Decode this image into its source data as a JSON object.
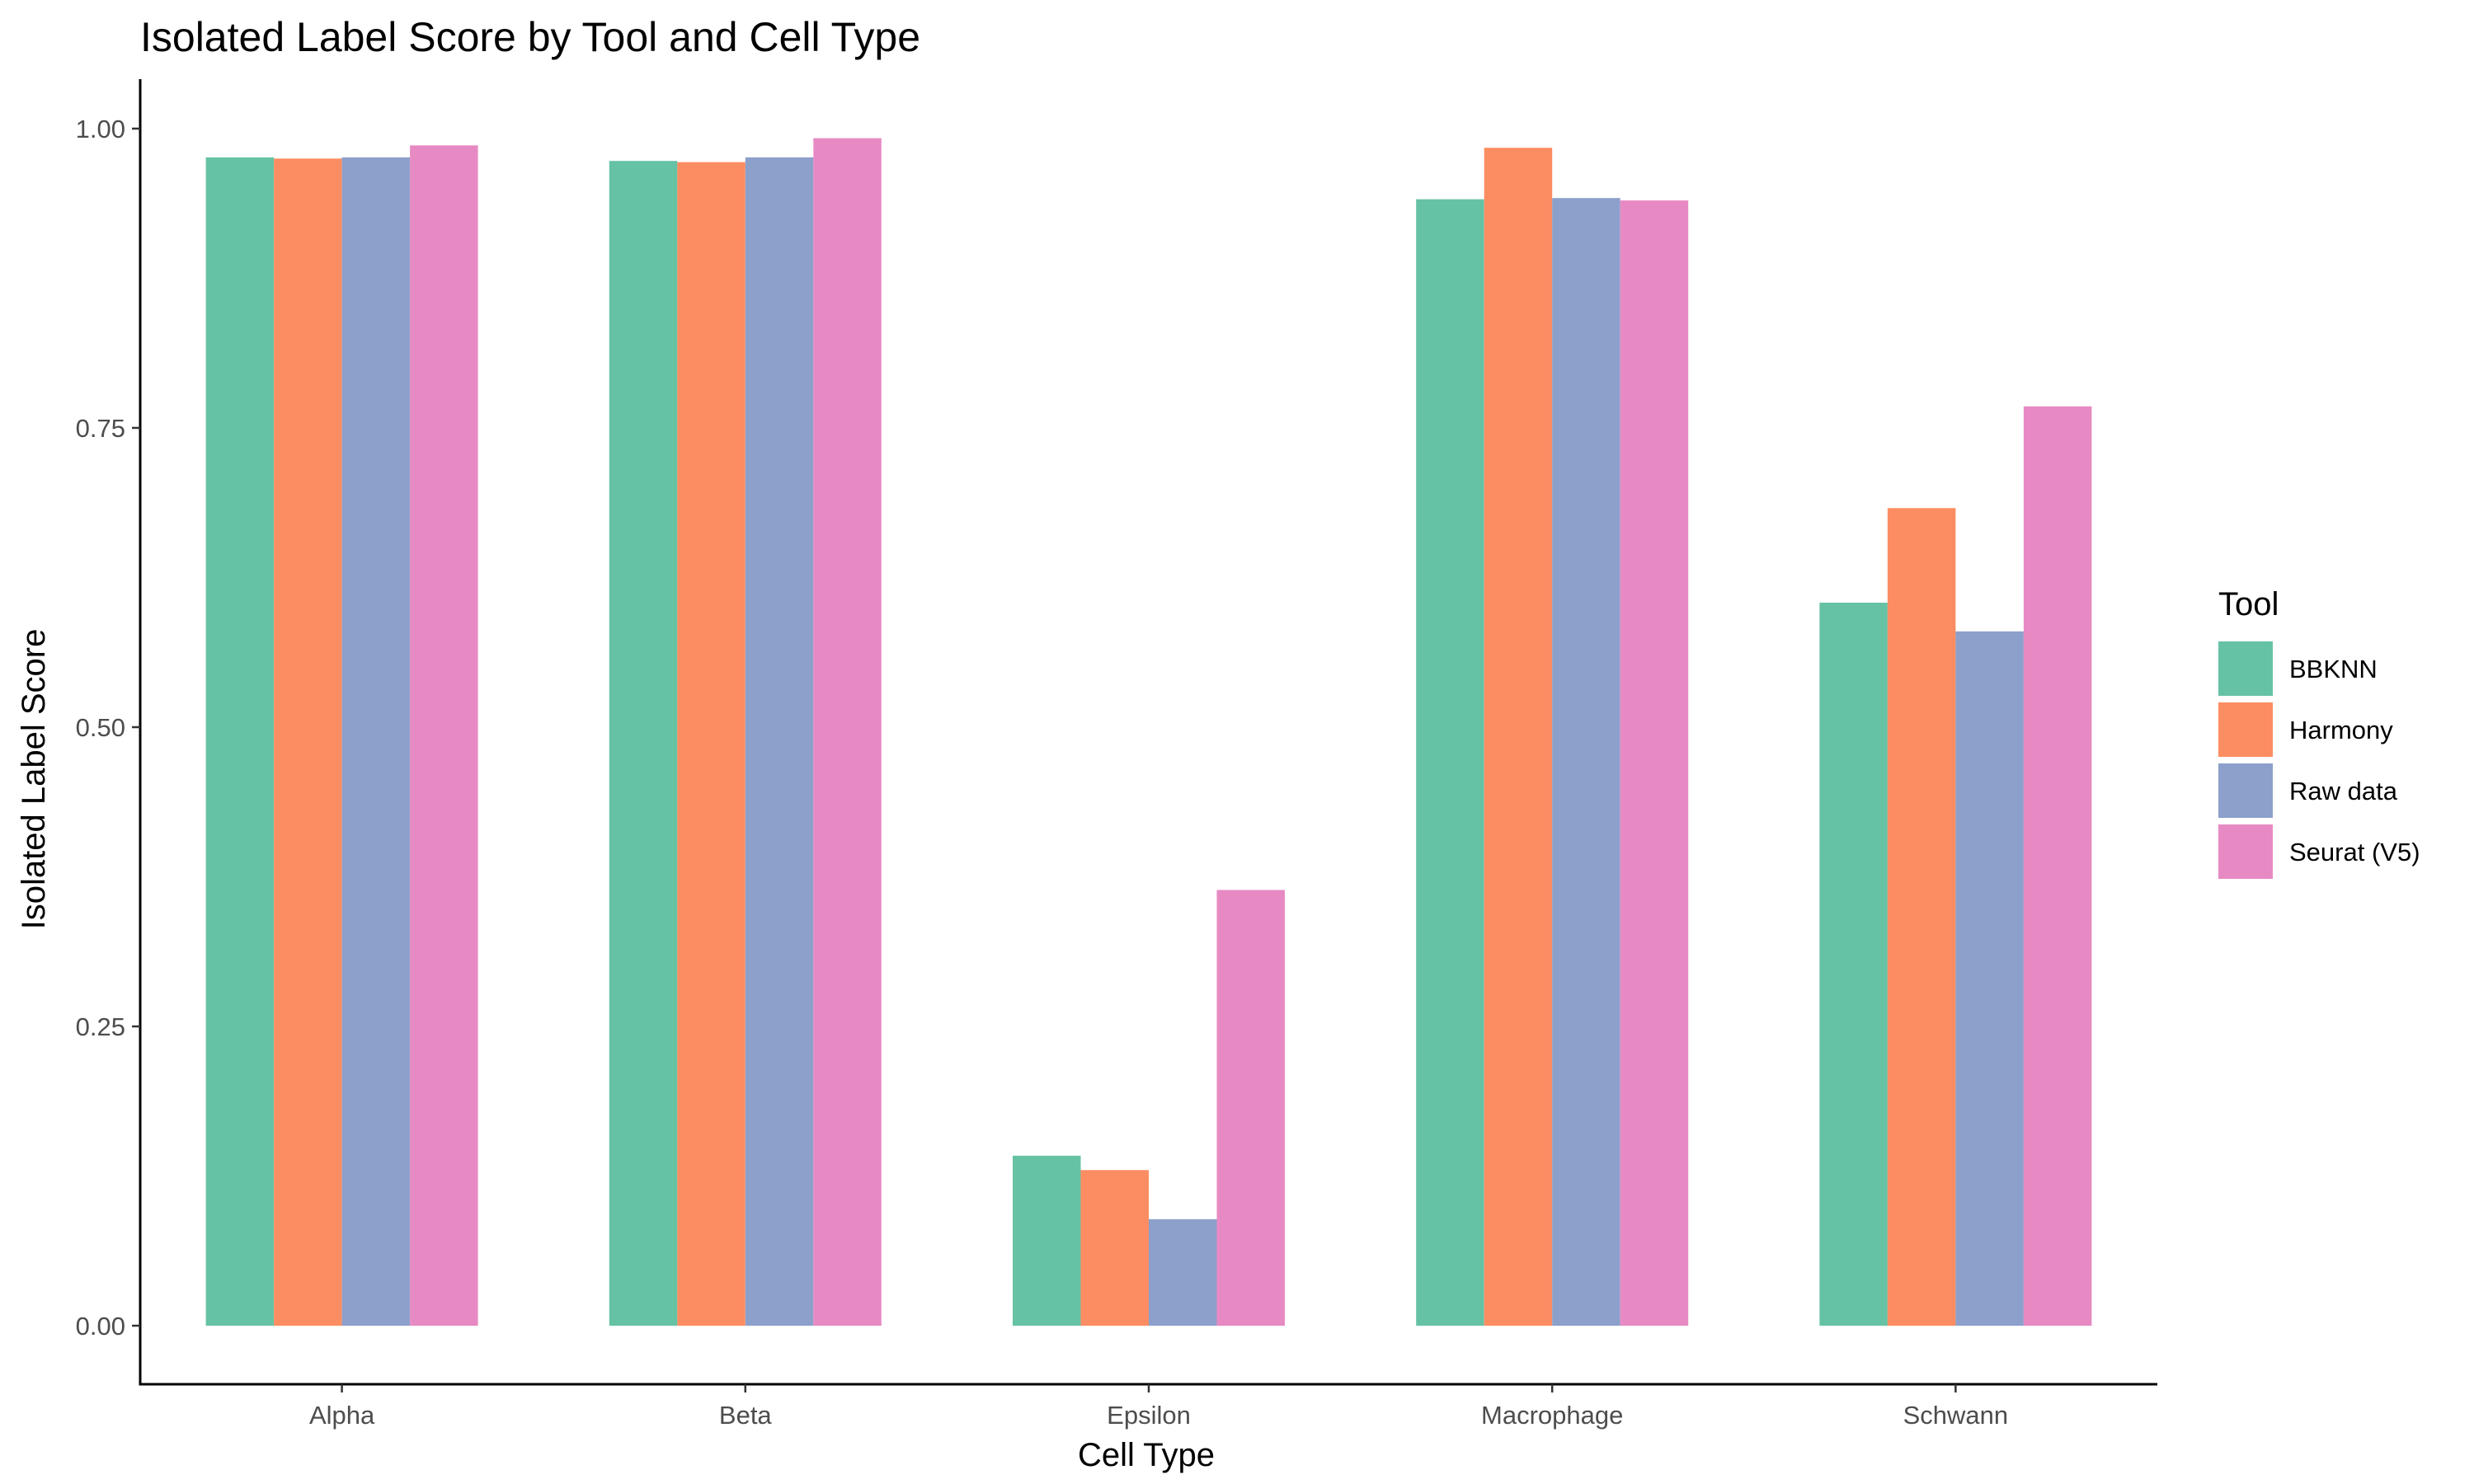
{
  "chart_data": {
    "type": "bar",
    "title": "Isolated Label Score by Tool and Cell Type",
    "xlabel": "Cell Type",
    "ylabel": "Isolated Label Score",
    "categories": [
      "Alpha",
      "Beta",
      "Epsilon",
      "Macrophage",
      "Schwann"
    ],
    "ylim": [
      -0.05,
      1.04
    ],
    "yticks": [
      0.0,
      0.25,
      0.5,
      0.75,
      1.0
    ],
    "ytick_labels": [
      "0.00",
      "0.25",
      "0.50",
      "0.75",
      "1.00"
    ],
    "grid": false,
    "legend_title": "Tool",
    "legend_position": "right",
    "series": [
      {
        "name": "BBKNN",
        "color": "#66C2A5",
        "values": [
          0.976,
          0.973,
          0.142,
          0.941,
          0.604
        ]
      },
      {
        "name": "Harmony",
        "color": "#FC8D62",
        "values": [
          0.975,
          0.972,
          0.13,
          0.984,
          0.683
        ]
      },
      {
        "name": "Raw data",
        "color": "#8DA0CB",
        "values": [
          0.976,
          0.976,
          0.089,
          0.942,
          0.58
        ]
      },
      {
        "name": "Seurat (V5)",
        "color": "#E78AC3",
        "values": [
          0.986,
          0.992,
          0.364,
          0.94,
          0.768
        ]
      }
    ]
  }
}
